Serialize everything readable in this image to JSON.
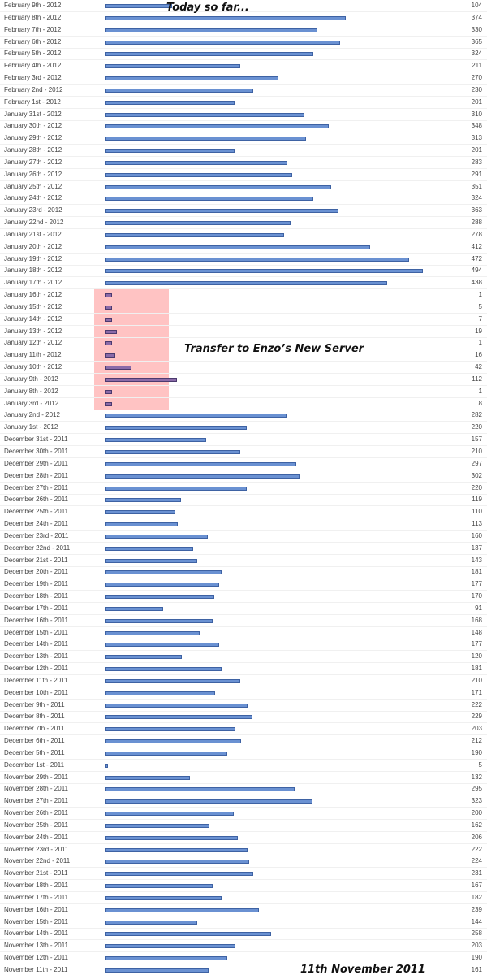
{
  "chart_data": {
    "type": "bar",
    "orientation": "horizontal",
    "grid": false,
    "xlim": [
      0,
      500
    ],
    "categories": [
      "February 9th - 2012",
      "February 8th - 2012",
      "February 7th - 2012",
      "February 6th - 2012",
      "February 5th - 2012",
      "February 4th - 2012",
      "February 3rd - 2012",
      "February 2nd - 2012",
      "February 1st - 2012",
      "January 31st - 2012",
      "January 30th - 2012",
      "January 29th - 2012",
      "January 28th - 2012",
      "January 27th - 2012",
      "January 26th - 2012",
      "January 25th - 2012",
      "January 24th - 2012",
      "January 23rd - 2012",
      "January 22nd - 2012",
      "January 21st - 2012",
      "January 20th - 2012",
      "January 19th - 2012",
      "January 18th - 2012",
      "January 17th - 2012",
      "January 16th - 2012",
      "January 15th - 2012",
      "January 14th - 2012",
      "January 13th - 2012",
      "January 12th - 2012",
      "January 11th - 2012",
      "January 10th - 2012",
      "January 9th - 2012",
      "January 8th - 2012",
      "January 3rd - 2012",
      "January 2nd - 2012",
      "January 1st - 2012",
      "December 31st - 2011",
      "December 30th - 2011",
      "December 29th - 2011",
      "December 28th - 2011",
      "December 27th - 2011",
      "December 26th - 2011",
      "December 25th - 2011",
      "December 24th - 2011",
      "December 23rd - 2011",
      "December 22nd - 2011",
      "December 21st - 2011",
      "December 20th - 2011",
      "December 19th - 2011",
      "December 18th - 2011",
      "December 17th - 2011",
      "December 16th - 2011",
      "December 15th - 2011",
      "December 14th - 2011",
      "December 13th - 2011",
      "December 12th - 2011",
      "December 11th - 2011",
      "December 10th - 2011",
      "December 9th - 2011",
      "December 8th - 2011",
      "December 7th - 2011",
      "December 6th - 2011",
      "December 5th - 2011",
      "December 1st - 2011",
      "November 29th - 2011",
      "November 28th - 2011",
      "November 27th - 2011",
      "November 26th - 2011",
      "November 25th - 2011",
      "November 24th - 2011",
      "November 23rd - 2011",
      "November 22nd - 2011",
      "November 21st - 2011",
      "November 18th - 2011",
      "November 17th - 2011",
      "November 16th - 2011",
      "November 15th - 2011",
      "November 14th - 2011",
      "November 13th - 2011",
      "November 12th - 2011",
      "November 11th - 2011"
    ],
    "values": [
      104,
      374,
      330,
      365,
      324,
      211,
      270,
      230,
      201,
      310,
      348,
      313,
      201,
      283,
      291,
      351,
      324,
      363,
      288,
      278,
      412,
      472,
      494,
      438,
      1,
      5,
      7,
      19,
      1,
      16,
      42,
      112,
      1,
      8,
      282,
      220,
      157,
      210,
      297,
      302,
      220,
      119,
      110,
      113,
      160,
      137,
      143,
      181,
      177,
      170,
      91,
      168,
      148,
      177,
      120,
      181,
      210,
      171,
      222,
      229,
      203,
      212,
      190,
      5,
      132,
      295,
      323,
      200,
      162,
      206,
      222,
      224,
      231,
      167,
      182,
      239,
      144,
      258,
      203,
      190,
      161
    ],
    "annotations": [
      {
        "text": "Today so far...",
        "anchor_category": "February 9th - 2012"
      },
      {
        "text": "Transfer to Enzo’s New Server",
        "range": [
          "January 16th - 2012",
          "January 3rd - 2012"
        ]
      },
      {
        "text": "11th November 2011",
        "anchor_category": "November 11th - 2011"
      }
    ],
    "colors": {
      "bar": "#6a91d2",
      "bar_border": "#3e62a3",
      "highlight_bar": "#8a6aa8",
      "highlight_region": "#ffbcbc"
    }
  }
}
